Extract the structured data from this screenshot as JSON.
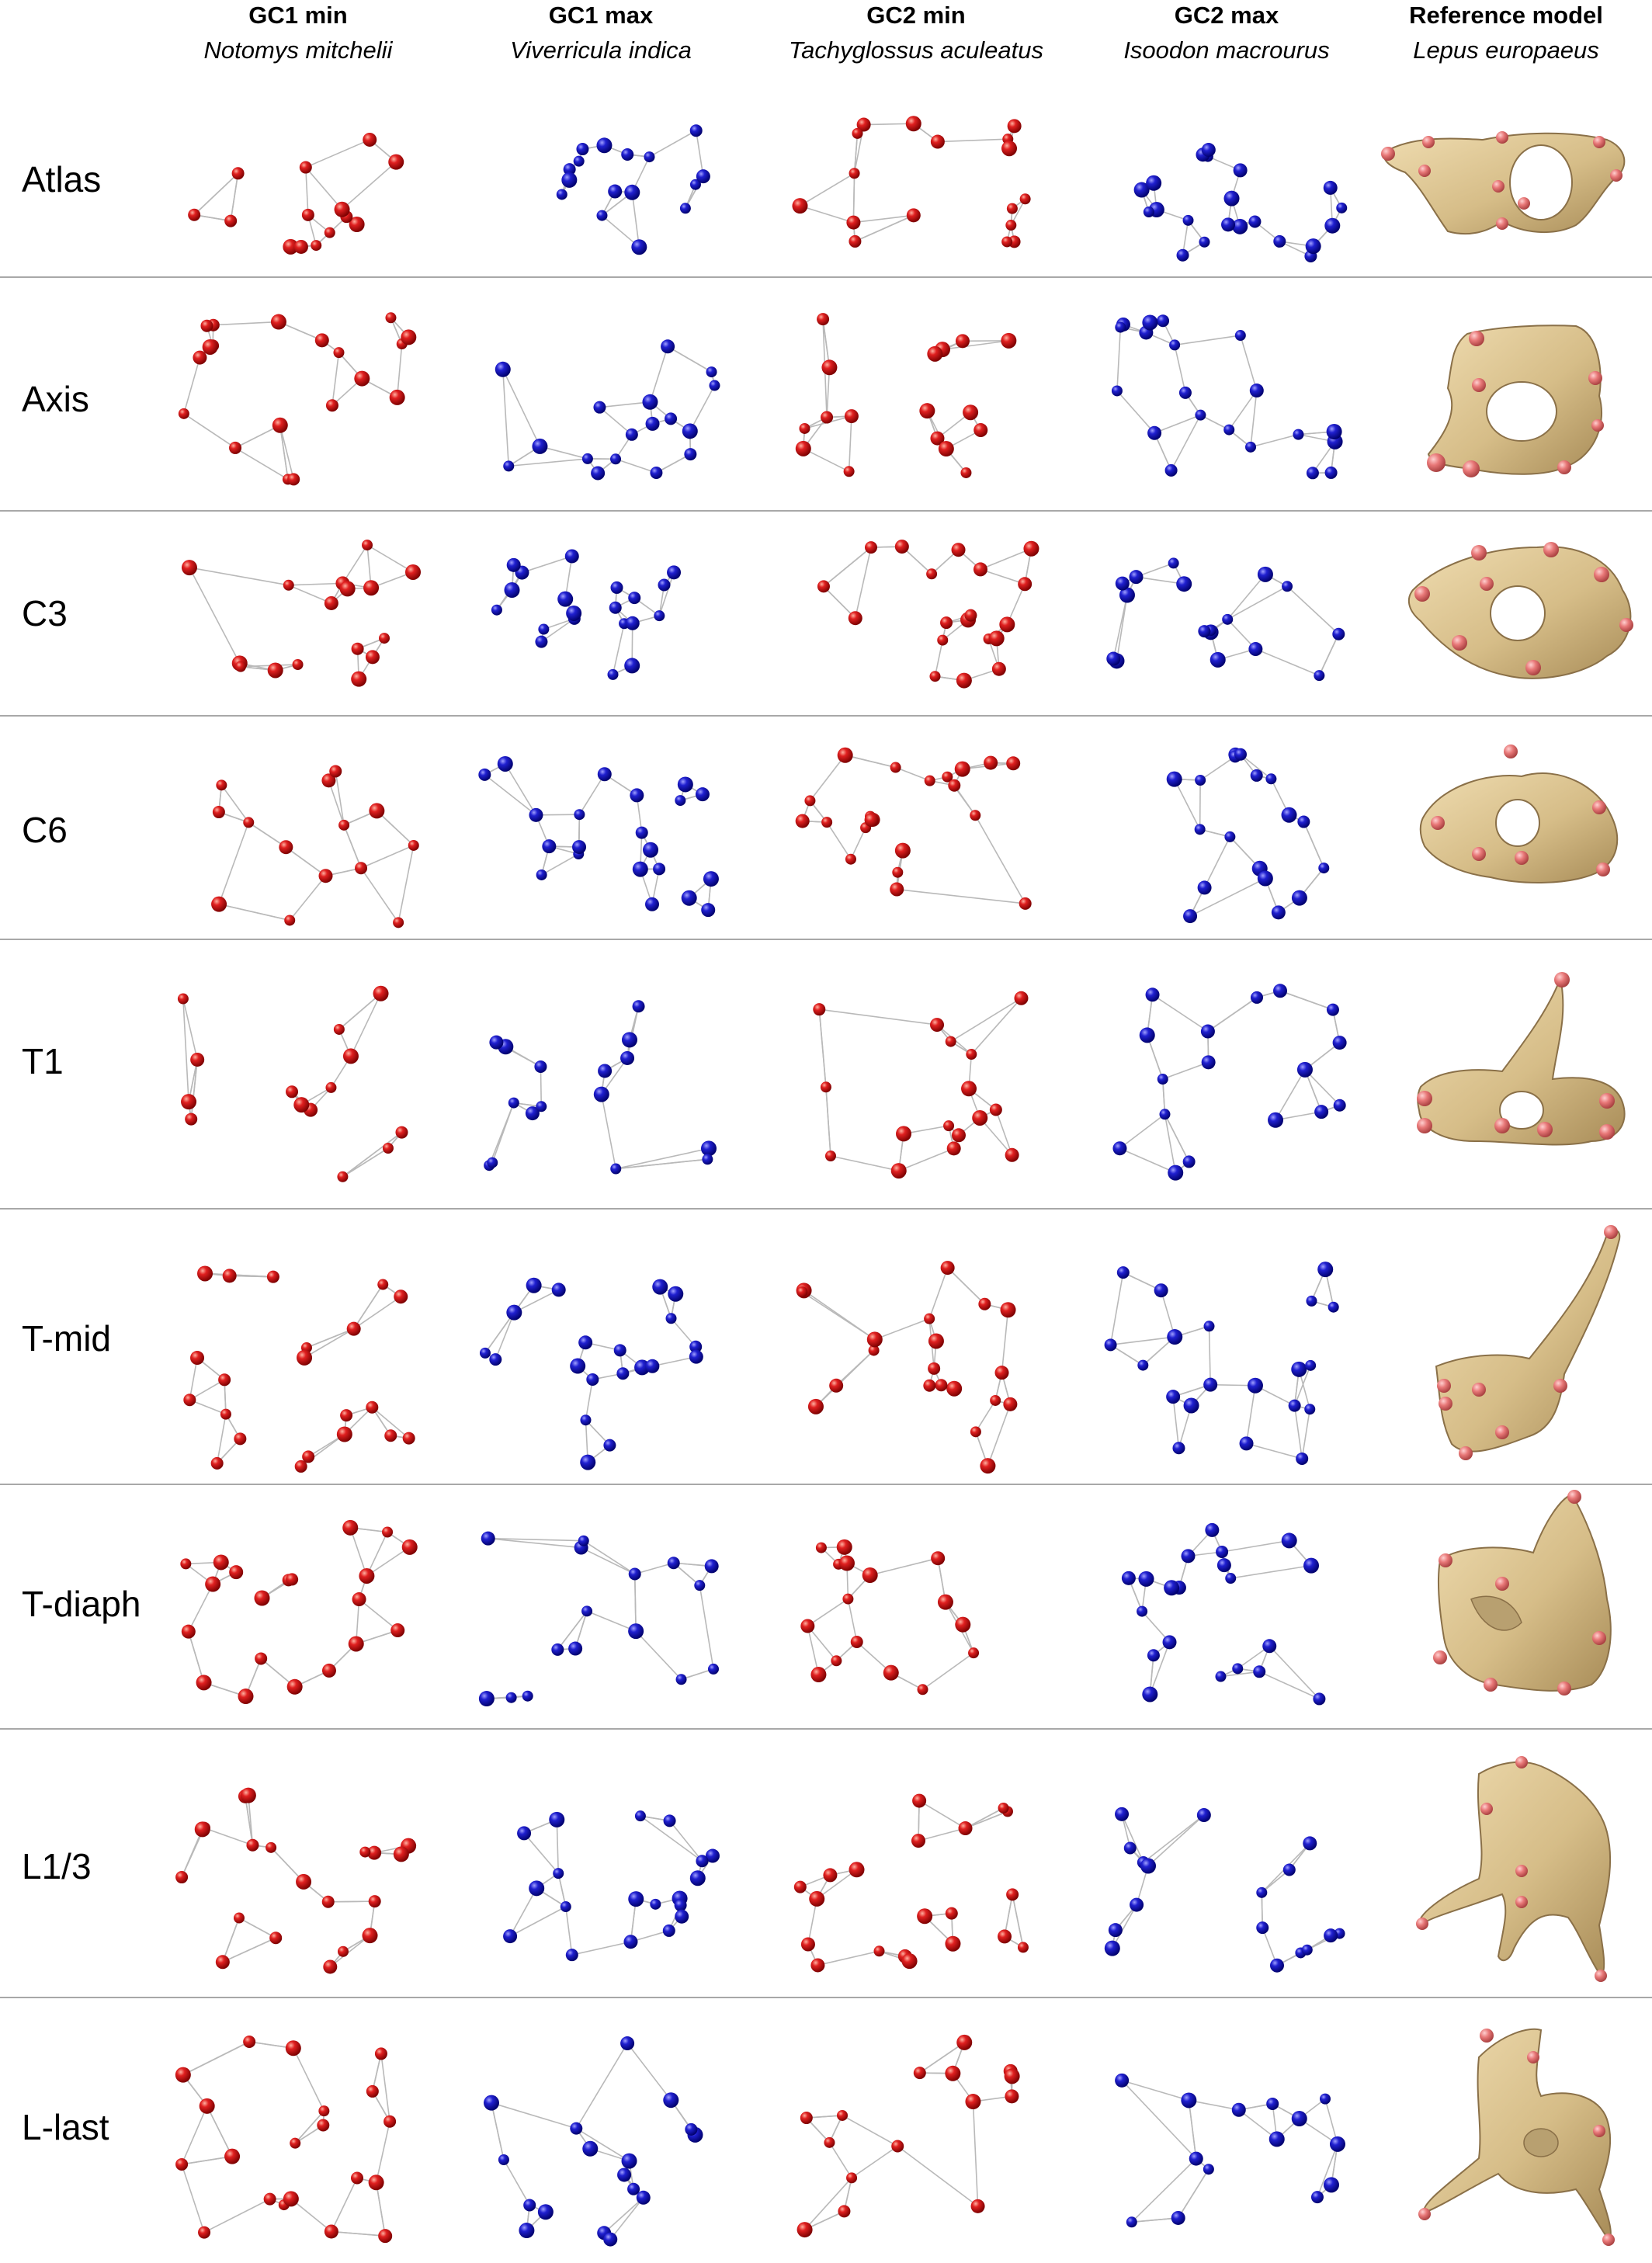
{
  "columns": [
    {
      "title": "GC1 min",
      "species": "Notomys mitchelii",
      "kind": "red"
    },
    {
      "title": "GC1 max",
      "species": "Viverricula indica",
      "kind": "blue"
    },
    {
      "title": "GC2 min",
      "species": "Tachyglossus aculeatus",
      "kind": "red"
    },
    {
      "title": "GC2 max",
      "species": "Isoodon macrourus",
      "kind": "blue"
    },
    {
      "title": "Reference model",
      "species": "Lepus europaeus",
      "kind": "model"
    }
  ],
  "rows": [
    {
      "label": "Atlas"
    },
    {
      "label": "Axis"
    },
    {
      "label": "C3"
    },
    {
      "label": "C6"
    },
    {
      "label": "T1"
    },
    {
      "label": "T-mid"
    },
    {
      "label": "T-diaph"
    },
    {
      "label": "L1/3"
    },
    {
      "label": "L-last"
    }
  ],
  "colors": {
    "landmark_min": "#d01010",
    "landmark_max": "#1a1ab8",
    "bone": "#d9c08e",
    "bone_landmark": "#e98080",
    "wireframe": "#b9b9b9",
    "separator": "#a8a8a8"
  }
}
